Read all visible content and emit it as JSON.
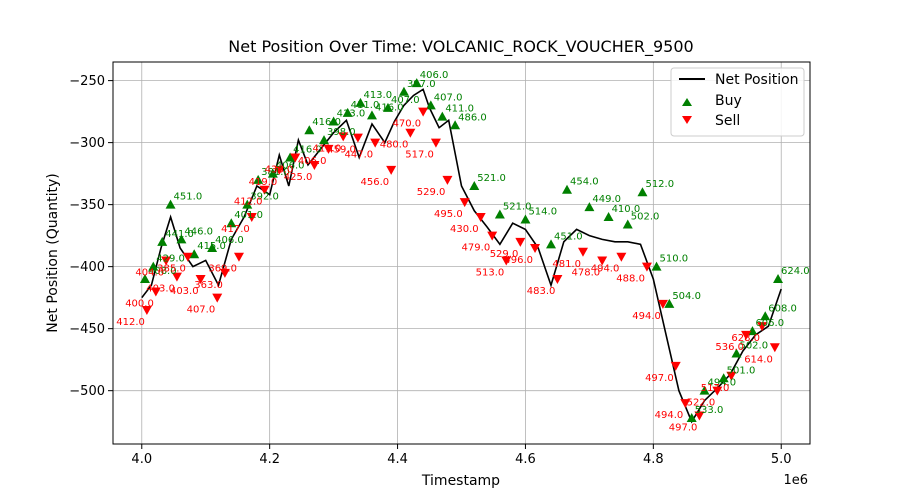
{
  "chart_data": {
    "type": "line",
    "title": "Net Position Over Time: VOLCANIC_ROCK_VOUCHER_9500",
    "xlabel": "Timestamp",
    "ylabel": "Net Position (Quantity)",
    "x_offset_label": "1e6",
    "xlim": [
      3.955,
      5.045
    ],
    "ylim": [
      -543,
      -235
    ],
    "x_ticks": [
      4.0,
      4.2,
      4.4,
      4.6,
      4.8,
      5.0
    ],
    "x_tick_labels": [
      "4.0",
      "4.2",
      "4.4",
      "4.6",
      "4.8",
      "5.0"
    ],
    "y_ticks": [
      -250,
      -300,
      -350,
      -400,
      -450,
      -500
    ],
    "y_tick_labels": [
      "−250",
      "−300",
      "−350",
      "−400",
      "−450",
      "−500"
    ],
    "grid": true,
    "legend_position": "top-right",
    "legend": [
      "Net Position",
      "Buy",
      "Sell"
    ],
    "colors": {
      "line": "#000000",
      "buy": "#008000",
      "sell": "#ff0000",
      "grid": "#b0b0b0"
    },
    "series": [
      {
        "name": "Net Position",
        "x": [
          4.0,
          4.015,
          4.03,
          4.045,
          4.06,
          4.08,
          4.1,
          4.12,
          4.14,
          4.16,
          4.18,
          4.2,
          4.215,
          4.23,
          4.245,
          4.26,
          4.28,
          4.3,
          4.32,
          4.34,
          4.36,
          4.38,
          4.395,
          4.41,
          4.425,
          4.44,
          4.45,
          4.465,
          4.48,
          4.5,
          4.52,
          4.54,
          4.56,
          4.58,
          4.6,
          4.62,
          4.64,
          4.66,
          4.68,
          4.7,
          4.72,
          4.74,
          4.76,
          4.78,
          4.8,
          4.82,
          4.84,
          4.86,
          4.88,
          4.9,
          4.92,
          4.94,
          4.96,
          4.98,
          5.0
        ],
        "y": [
          -425,
          -415,
          -385,
          -360,
          -385,
          -400,
          -395,
          -415,
          -378,
          -360,
          -335,
          -342,
          -310,
          -335,
          -298,
          -318,
          -305,
          -292,
          -282,
          -312,
          -285,
          -300,
          -283,
          -270,
          -262,
          -257,
          -272,
          -288,
          -282,
          -335,
          -355,
          -368,
          -382,
          -365,
          -370,
          -385,
          -415,
          -380,
          -370,
          -375,
          -378,
          -380,
          -380,
          -382,
          -410,
          -455,
          -500,
          -525,
          -508,
          -498,
          -487,
          -468,
          -455,
          -448,
          -418
        ]
      }
    ],
    "buy_markers": {
      "x": [
        4.005,
        4.018,
        4.032,
        4.045,
        4.062,
        4.082,
        4.11,
        4.14,
        4.165,
        4.182,
        4.205,
        4.232,
        4.262,
        4.285,
        4.3,
        4.322,
        4.342,
        4.36,
        4.385,
        4.41,
        4.43,
        4.452,
        4.47,
        4.49,
        4.52,
        4.56,
        4.6,
        4.64,
        4.665,
        4.7,
        4.73,
        4.76,
        4.783,
        4.805,
        4.825,
        4.86,
        4.88,
        4.91,
        4.93,
        4.955,
        4.975,
        4.995
      ],
      "y": [
        -410,
        -400,
        -380,
        -350,
        -378,
        -390,
        -385,
        -365,
        -350,
        -330,
        -325,
        -312,
        -290,
        -298,
        -283,
        -276,
        -268,
        -278,
        -272,
        -259,
        -252,
        -270,
        -279,
        -286,
        -335,
        -358,
        -362,
        -382,
        -338,
        -352,
        -360,
        -366,
        -340,
        -400,
        -430,
        -522,
        -500,
        -490,
        -470,
        -452,
        -440,
        -410
      ],
      "labels": [
        "408.0",
        "429.0",
        "441.0",
        "451.0",
        "446.0",
        "415.0",
        "406.0",
        "401.0",
        "392.0",
        "381.0",
        "406.0",
        "416.0",
        "416.0",
        "398.0",
        "413.0",
        "411.0",
        "413.0",
        "416.0",
        "407.0",
        "397.0",
        "406.0",
        "407.0",
        "411.0",
        "486.0",
        "521.0",
        "521.0",
        "514.0",
        "451.0",
        "454.0",
        "449.0",
        "410.0",
        "502.0",
        "512.0",
        "510.0",
        "504.0",
        "533.0",
        "494.0",
        "501.0",
        "502.0",
        "606.0",
        "608.0",
        "624.0"
      ]
    },
    "sell_markers": {
      "x": [
        4.008,
        4.022,
        4.038,
        4.055,
        4.072,
        4.092,
        4.118,
        4.13,
        4.152,
        4.172,
        4.192,
        4.215,
        4.24,
        4.27,
        4.292,
        4.315,
        4.338,
        4.365,
        4.39,
        4.42,
        4.44,
        4.46,
        4.478,
        4.505,
        4.53,
        4.548,
        4.57,
        4.592,
        4.615,
        4.65,
        4.69,
        4.72,
        4.75,
        4.79,
        4.815,
        4.835,
        4.85,
        4.872,
        4.9,
        4.922,
        4.945,
        4.97,
        4.99
      ],
      "y": [
        -435,
        -420,
        -395,
        -408,
        -392,
        -410,
        -425,
        -405,
        -392,
        -360,
        -338,
        -322,
        -312,
        -318,
        -305,
        -295,
        -296,
        -300,
        -322,
        -292,
        -275,
        -300,
        -330,
        -348,
        -360,
        -375,
        -395,
        -380,
        -385,
        -410,
        -388,
        -395,
        -392,
        -400,
        -430,
        -480,
        -510,
        -520,
        -500,
        -488,
        -455,
        -448,
        -465
      ],
      "labels": [
        "412.0",
        "400.0",
        "404.0",
        "403.0",
        "385.0",
        "403.0",
        "407.0",
        "363.0",
        "369.0",
        "417.0",
        "412.0",
        "419.0",
        "436.0",
        "425.0",
        "406.0",
        "411.0",
        "459.0",
        "447.0",
        "456.0",
        "480.0",
        "470.0",
        "517.0",
        "529.0",
        "495.0",
        "430.0",
        "479.0",
        "513.0",
        "529.0",
        "496.0",
        "483.0",
        "481.0",
        "478.0",
        "494.0",
        "488.0",
        "494.0",
        "497.0",
        "494.0",
        "497.0",
        "522.0",
        "517.0",
        "536.0",
        "628.0",
        "614.0"
      ]
    }
  }
}
